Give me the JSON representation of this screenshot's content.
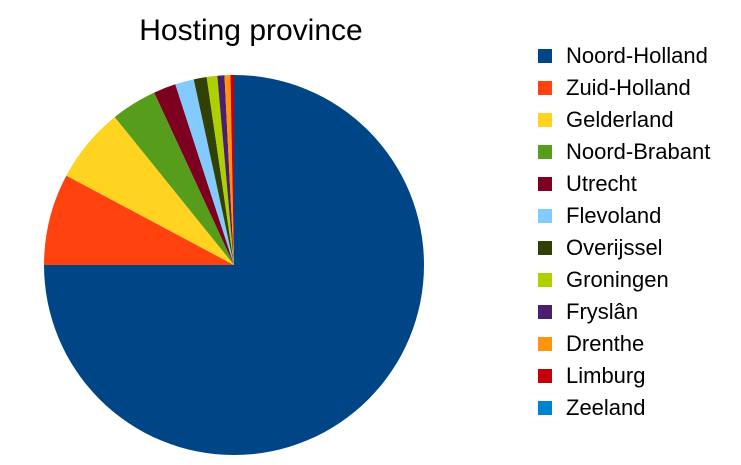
{
  "chart_data": {
    "type": "pie",
    "title": "Hosting province",
    "legend_position": "right",
    "start_angle_deg": 0,
    "direction": "clockwise",
    "slices": [
      {
        "label": "Noord-Holland",
        "value": 75.0,
        "color": "#004586"
      },
      {
        "label": "Zuid-Holland",
        "value": 7.8,
        "color": "#ff420e"
      },
      {
        "label": "Gelderland",
        "value": 6.4,
        "color": "#ffd320"
      },
      {
        "label": "Noord-Brabant",
        "value": 3.9,
        "color": "#579d1c"
      },
      {
        "label": "Utrecht",
        "value": 1.9,
        "color": "#7e0021"
      },
      {
        "label": "Flevoland",
        "value": 1.6,
        "color": "#83caff"
      },
      {
        "label": "Overijssel",
        "value": 1.1,
        "color": "#314004"
      },
      {
        "label": "Groningen",
        "value": 0.9,
        "color": "#aecf00"
      },
      {
        "label": "Fryslân",
        "value": 0.6,
        "color": "#4b1f6f"
      },
      {
        "label": "Drenthe",
        "value": 0.5,
        "color": "#ff950e"
      },
      {
        "label": "Limburg",
        "value": 0.3,
        "color": "#c5000b"
      },
      {
        "label": "Zeeland",
        "value": 0.0,
        "color": "#0084d1"
      }
    ]
  }
}
